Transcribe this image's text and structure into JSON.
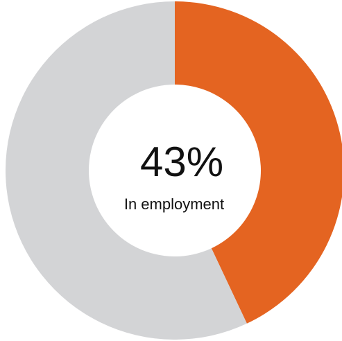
{
  "chart_data": {
    "type": "pie",
    "style": "donut",
    "slices": [
      {
        "label": "In employment",
        "value": 43,
        "color": "#E46421"
      },
      {
        "label": "",
        "value": 57,
        "color": "#D3D4D6"
      }
    ],
    "center_text": {
      "value": "43%",
      "label": "In employment"
    },
    "start_angle": "12 o'clock",
    "direction": "clockwise"
  }
}
